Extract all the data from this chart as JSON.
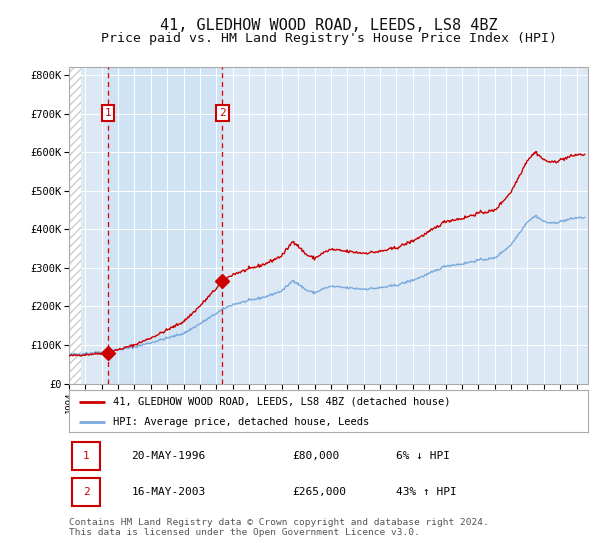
{
  "title": "41, GLEDHOW WOOD ROAD, LEEDS, LS8 4BZ",
  "subtitle": "Price paid vs. HM Land Registry's House Price Index (HPI)",
  "title_fontsize": 11,
  "subtitle_fontsize": 9.5,
  "background_color": "#ffffff",
  "plot_bg_color": "#dce9f5",
  "grid_color": "#ffffff",
  "red_line_color": "#cc0000",
  "blue_line_color": "#7aaadd",
  "dashed_line_color": "#dd0000",
  "purchase1_date": 1996.38,
  "purchase1_price": 80000,
  "purchase2_date": 2003.37,
  "purchase2_price": 265000,
  "ylim": [
    0,
    820000
  ],
  "xlim_start": 1994.0,
  "xlim_end": 2025.7,
  "ylabel_ticks": [
    0,
    100000,
    200000,
    300000,
    400000,
    500000,
    600000,
    700000,
    800000
  ],
  "ylabel_labels": [
    "£0",
    "£100K",
    "£200K",
    "£300K",
    "£400K",
    "£500K",
    "£600K",
    "£700K",
    "£800K"
  ],
  "legend_line1": "41, GLEDHOW WOOD ROAD, LEEDS, LS8 4BZ (detached house)",
  "legend_line2": "HPI: Average price, detached house, Leeds",
  "table_row1_num": "1",
  "table_row1_date": "20-MAY-1996",
  "table_row1_price": "£80,000",
  "table_row1_hpi": "6% ↓ HPI",
  "table_row2_num": "2",
  "table_row2_date": "16-MAY-2003",
  "table_row2_price": "£265,000",
  "table_row2_hpi": "43% ↑ HPI",
  "footnote": "Contains HM Land Registry data © Crown copyright and database right 2024.\nThis data is licensed under the Open Government Licence v3.0."
}
